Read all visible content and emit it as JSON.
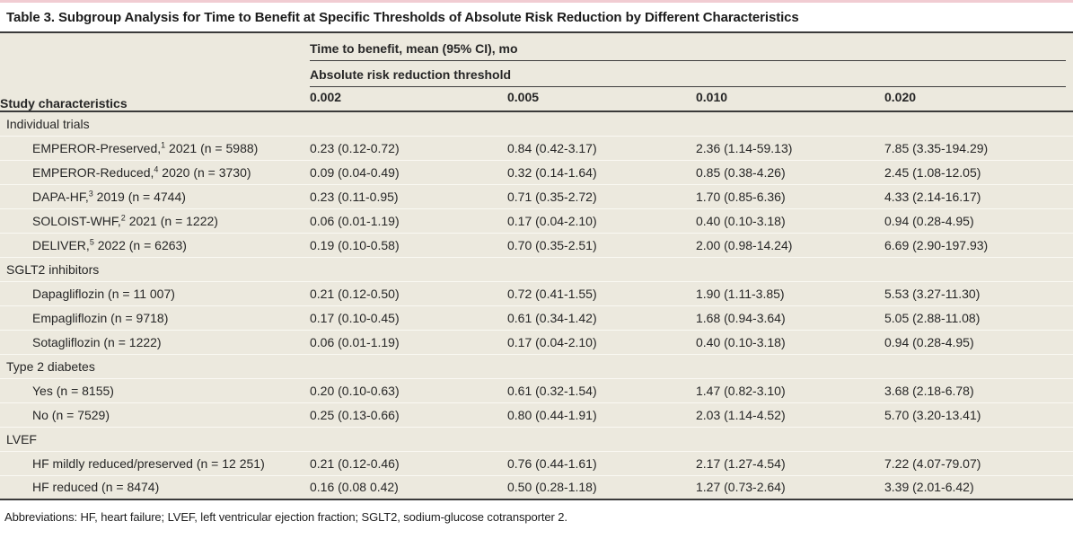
{
  "title": "Table 3. Subgroup Analysis for Time to Benefit at Specific Thresholds of Absolute Risk Reduction by Different Characteristics",
  "header": {
    "col1": "Study characteristics",
    "spanner1": "Time to benefit, mean (95% CI), mo",
    "spanner2": "Absolute risk reduction threshold",
    "thresholds": [
      "0.002",
      "0.005",
      "0.010",
      "0.020"
    ]
  },
  "sections": [
    {
      "label": "Individual trials",
      "rows": [
        {
          "label_pre": "EMPEROR-Preserved,",
          "citation": "1",
          "label_post": " 2021 (n = 5988)",
          "values": [
            "0.23 (0.12-0.72)",
            "0.84 (0.42-3.17)",
            "2.36 (1.14-59.13)",
            "7.85 (3.35-194.29)"
          ]
        },
        {
          "label_pre": "EMPEROR-Reduced,",
          "citation": "4",
          "label_post": " 2020 (n = 3730)",
          "values": [
            "0.09 (0.04-0.49)",
            "0.32 (0.14-1.64)",
            "0.85 (0.38-4.26)",
            "2.45 (1.08-12.05)"
          ]
        },
        {
          "label_pre": "DAPA-HF,",
          "citation": "3",
          "label_post": " 2019 (n = 4744)",
          "values": [
            "0.23 (0.11-0.95)",
            "0.71 (0.35-2.72)",
            "1.70 (0.85-6.36)",
            "4.33 (2.14-16.17)"
          ]
        },
        {
          "label_pre": "SOLOIST-WHF,",
          "citation": "2",
          "label_post": " 2021 (n = 1222)",
          "values": [
            "0.06 (0.01-1.19)",
            "0.17 (0.04-2.10)",
            "0.40 (0.10-3.18)",
            "0.94 (0.28-4.95)"
          ]
        },
        {
          "label_pre": "DELIVER,",
          "citation": "5",
          "label_post": " 2022 (n = 6263)",
          "values": [
            "0.19 (0.10-0.58)",
            "0.70 (0.35-2.51)",
            "2.00 (0.98-14.24)",
            "6.69 (2.90-197.93)"
          ]
        }
      ]
    },
    {
      "label": "SGLT2 inhibitors",
      "rows": [
        {
          "label_pre": "Dapagliflozin (n = 11 007)",
          "citation": "",
          "label_post": "",
          "values": [
            "0.21 (0.12-0.50)",
            "0.72 (0.41-1.55)",
            "1.90 (1.11-3.85)",
            "5.53 (3.27-11.30)"
          ]
        },
        {
          "label_pre": "Empagliflozin (n = 9718)",
          "citation": "",
          "label_post": "",
          "values": [
            "0.17 (0.10-0.45)",
            "0.61 (0.34-1.42)",
            "1.68 (0.94-3.64)",
            "5.05 (2.88-11.08)"
          ]
        },
        {
          "label_pre": "Sotagliflozin (n = 1222)",
          "citation": "",
          "label_post": "",
          "values": [
            "0.06 (0.01-1.19)",
            "0.17 (0.04-2.10)",
            "0.40 (0.10-3.18)",
            "0.94 (0.28-4.95)"
          ]
        }
      ]
    },
    {
      "label": "Type 2 diabetes",
      "rows": [
        {
          "label_pre": "Yes (n = 8155)",
          "citation": "",
          "label_post": "",
          "values": [
            "0.20 (0.10-0.63)",
            "0.61 (0.32-1.54)",
            "1.47 (0.82-3.10)",
            "3.68 (2.18-6.78)"
          ]
        },
        {
          "label_pre": "No (n = 7529)",
          "citation": "",
          "label_post": "",
          "values": [
            "0.25 (0.13-0.66)",
            "0.80 (0.44-1.91)",
            "2.03 (1.14-4.52)",
            "5.70 (3.20-13.41)"
          ]
        }
      ]
    },
    {
      "label": "LVEF",
      "rows": [
        {
          "label_pre": "HF mildly reduced/preserved (n = 12 251)",
          "citation": "",
          "label_post": "",
          "values": [
            "0.21 (0.12-0.46)",
            "0.76 (0.44-1.61)",
            "2.17 (1.27-4.54)",
            "7.22 (4.07-79.07)"
          ]
        },
        {
          "label_pre": "HF reduced (n = 8474)",
          "citation": "",
          "label_post": "",
          "values": [
            "0.16 (0.08 0.42)",
            "0.50 (0.28-1.18)",
            "1.27 (0.73-2.64)",
            "3.39 (2.01-6.42)"
          ]
        }
      ]
    }
  ],
  "footnote": "Abbreviations: HF, heart failure; LVEF, left ventricular ejection fraction; SGLT2, sodium-glucose cotransporter 2."
}
